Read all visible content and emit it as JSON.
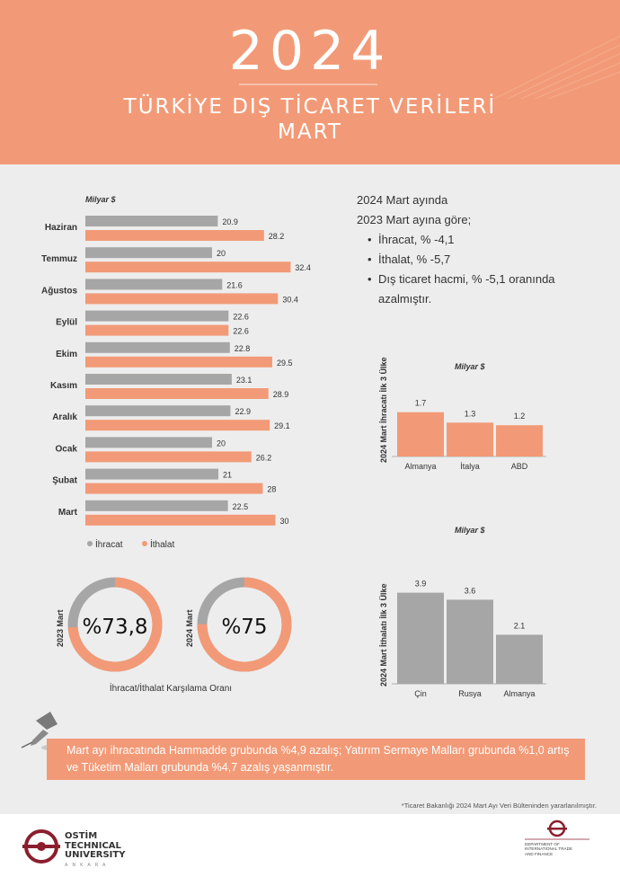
{
  "header": {
    "year": "2024",
    "title": "TÜRKİYE DIŞ TİCARET VERİLERİ",
    "subtitle": "MART"
  },
  "summary": {
    "line1": "2024  Mart ayında",
    "line2": "2023  Mart ayına göre;",
    "bullets": [
      "İhracat, % -4,1",
      "İthalat, % -5,7",
      "Dış ticaret hacmi, % -5,1 oranında azalmıştır."
    ]
  },
  "chart_data": [
    {
      "type": "bar",
      "orientation": "horizontal",
      "ylabel": "Milyar $",
      "categories": [
        "Haziran",
        "Temmuz",
        "Ağustos",
        "Eylül",
        "Ekim",
        "Kasım",
        "Aralık",
        "Ocak",
        "Şubat",
        "Mart"
      ],
      "series": [
        {
          "name": "İhracat",
          "color": "#a6a6a6",
          "values": [
            20.9,
            20,
            21.6,
            22.6,
            22.8,
            23.1,
            22.9,
            20,
            21,
            22.5
          ]
        },
        {
          "name": "İthalat",
          "color": "#f29a77",
          "values": [
            28.2,
            32.4,
            30.4,
            22.6,
            29.5,
            28.9,
            29.1,
            26.2,
            28,
            30
          ]
        }
      ],
      "value_labels": {
        "ihracat": [
          "20.9",
          "20",
          "21.6",
          "22.6",
          "22.8",
          "23.1",
          "22.9",
          "20",
          "21",
          "22.5"
        ],
        "ithalat": [
          "28.2",
          "32.4",
          "30.4",
          "22.6",
          "29.5",
          "28.9",
          "29.1",
          "26.2",
          "28",
          "30"
        ]
      },
      "legend": [
        "İhracat",
        "İthalat"
      ],
      "legend_position": "bottom-left"
    },
    {
      "type": "bar",
      "title": "2024 Mart İhracatı İlk 3 Ülke",
      "unit": "Milyar $",
      "categories": [
        "Almanya",
        "İtalya",
        "ABD"
      ],
      "values": [
        1.7,
        1.3,
        1.2
      ],
      "value_labels": [
        "1.7",
        "1.3",
        "1.2"
      ],
      "color": "#f29a77"
    },
    {
      "type": "bar",
      "title": "2024 Mart İthalatı İlk 3 Ülke",
      "unit": "Milyar $",
      "categories": [
        "Çin",
        "Rusya",
        "Almanya"
      ],
      "values": [
        3.9,
        3.6,
        2.1
      ],
      "value_labels": [
        "3.9",
        "3.6",
        "2.1"
      ],
      "color": "#a6a6a6"
    },
    {
      "type": "pie",
      "title": "İhracat/İthalat Karşılama Oranı",
      "items": [
        {
          "label": "2023 Mart",
          "value_text": "%73,8",
          "percent": 73.8
        },
        {
          "label": "2024 Mart",
          "value_text": "%75",
          "percent": 75
        }
      ],
      "colors": {
        "filled": "#f29a77",
        "rest": "#a6a6a6"
      }
    }
  ],
  "note": "Mart ayı ihracatında Hammadde grubunda %4,9 azalış; Yatırım Sermaye Malları grubunda %1,0 artış ve Tüketim Malları grubunda %4,7 azalış yaşanmıştır.",
  "source": "*Ticaret Bakanlığı 2024 Mart Ayı Veri Bülteninden yararlanılmıştır.",
  "footer": {
    "ostim": [
      "OSTİM",
      "TECHNICAL",
      "UNIVERSITY"
    ],
    "ostim_sub": "ANKARA",
    "dept": [
      "DEPARTMENT OF",
      "INTERNATIONAL TRADE",
      "AND FINANCE"
    ]
  }
}
